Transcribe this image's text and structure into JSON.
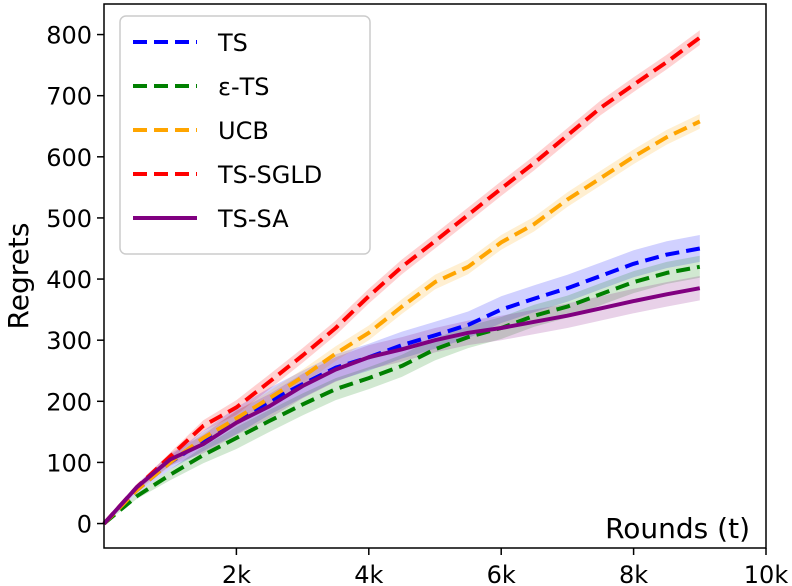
{
  "chart_data": {
    "type": "line",
    "title": "",
    "xlabel": "Rounds (t)",
    "ylabel": "Regrets",
    "xlim": [
      0,
      10000
    ],
    "ylim": [
      -40,
      850
    ],
    "xticks": [
      2000,
      4000,
      6000,
      8000,
      10000
    ],
    "xtick_labels": [
      "2k",
      "4k",
      "6k",
      "8k",
      "10k"
    ],
    "yticks": [
      0,
      100,
      200,
      300,
      400,
      500,
      600,
      700,
      800
    ],
    "ytick_labels": [
      "0",
      "100",
      "200",
      "300",
      "400",
      "500",
      "600",
      "700",
      "800"
    ],
    "grid": false,
    "legend_position": "top-left",
    "x": [
      0,
      500,
      1000,
      1500,
      2000,
      2500,
      3000,
      3500,
      4000,
      4500,
      5000,
      5500,
      6000,
      6500,
      7000,
      7500,
      8000,
      8500,
      9000
    ],
    "series": [
      {
        "name": "TS",
        "color": "#0000ff",
        "style": "dashed",
        "values": [
          0,
          55,
          100,
          135,
          168,
          200,
          228,
          255,
          272,
          292,
          308,
          325,
          350,
          368,
          385,
          405,
          425,
          440,
          450
        ],
        "band": 22
      },
      {
        "name": "ε-TS",
        "color": "#008000",
        "style": "dashed",
        "values": [
          0,
          45,
          80,
          112,
          140,
          168,
          195,
          220,
          238,
          258,
          285,
          305,
          320,
          340,
          355,
          375,
          395,
          410,
          420
        ],
        "band": 18
      },
      {
        "name": "UCB",
        "color": "#ffa500",
        "style": "dashed",
        "values": [
          0,
          55,
          100,
          140,
          172,
          205,
          240,
          278,
          312,
          355,
          395,
          420,
          460,
          490,
          530,
          565,
          600,
          632,
          658
        ],
        "band": 12
      },
      {
        "name": "TS-SGLD",
        "color": "#ff0000",
        "style": "dashed",
        "values": [
          0,
          60,
          110,
          160,
          190,
          232,
          275,
          320,
          372,
          420,
          462,
          505,
          548,
          590,
          635,
          680,
          718,
          755,
          795
        ],
        "band": 12
      },
      {
        "name": "TS-SA",
        "color": "#800080",
        "style": "solid",
        "values": [
          0,
          60,
          105,
          130,
          165,
          192,
          225,
          252,
          272,
          285,
          300,
          312,
          320,
          330,
          340,
          352,
          364,
          375,
          385
        ],
        "band": 20
      }
    ]
  }
}
